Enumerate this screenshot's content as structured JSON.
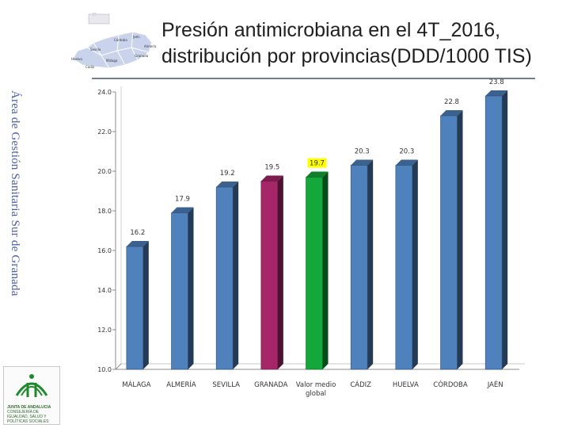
{
  "title": "Presión antimicrobiana en el 4T_2016, distribución por provincias(DDD/1000 TIS)",
  "side_label": "Área de Gestión Sanitaria Sur de Granada",
  "map": {
    "labels": [
      "Huelva",
      "Sevilla",
      "Córdoba",
      "Jaén",
      "Granada",
      "Málaga",
      "Almería",
      "Cádiz"
    ]
  },
  "logo": {
    "brand": "JUNTA DE ANDALUCIA",
    "dept": "CONSEJERÍA DE IGUALDAD, SALUD Y POLÍTICAS SOCIALES"
  },
  "colors": {
    "default_bar": "#4f81bd",
    "granada_bar": "#a5276a",
    "average_bar": "#14a83c",
    "average_label_bg": "#ffff00",
    "axis": "#8c8c8c",
    "title_rule": "#6d7f91"
  },
  "chart_data": {
    "type": "bar",
    "title": "",
    "xlabel": "",
    "ylabel": "",
    "ylim": [
      10,
      24
    ],
    "yticks": [
      "10.0",
      "12.0",
      "14.0",
      "16.0",
      "18.0",
      "20.0",
      "22.0",
      "24.0"
    ],
    "categories": [
      "MÁLAGA",
      "ALMERÍA",
      "SEVILLA",
      "GRANADA",
      "Valor medio global",
      "CÁDIZ",
      "HUELVA",
      "CÓRDOBA",
      "JAÉN"
    ],
    "values": [
      16.2,
      17.9,
      19.2,
      19.5,
      19.7,
      20.3,
      20.3,
      22.8,
      23.8
    ],
    "value_labels": [
      "16.2",
      "17.9",
      "19.2",
      "19.5",
      "19.7",
      "20.3",
      "20.3",
      "22.8",
      "23.8"
    ],
    "highlight": {
      "GRANADA": "granada_bar",
      "Valor medio global": "average_bar"
    },
    "grid": false,
    "legend": "none",
    "style": "3d-column"
  }
}
